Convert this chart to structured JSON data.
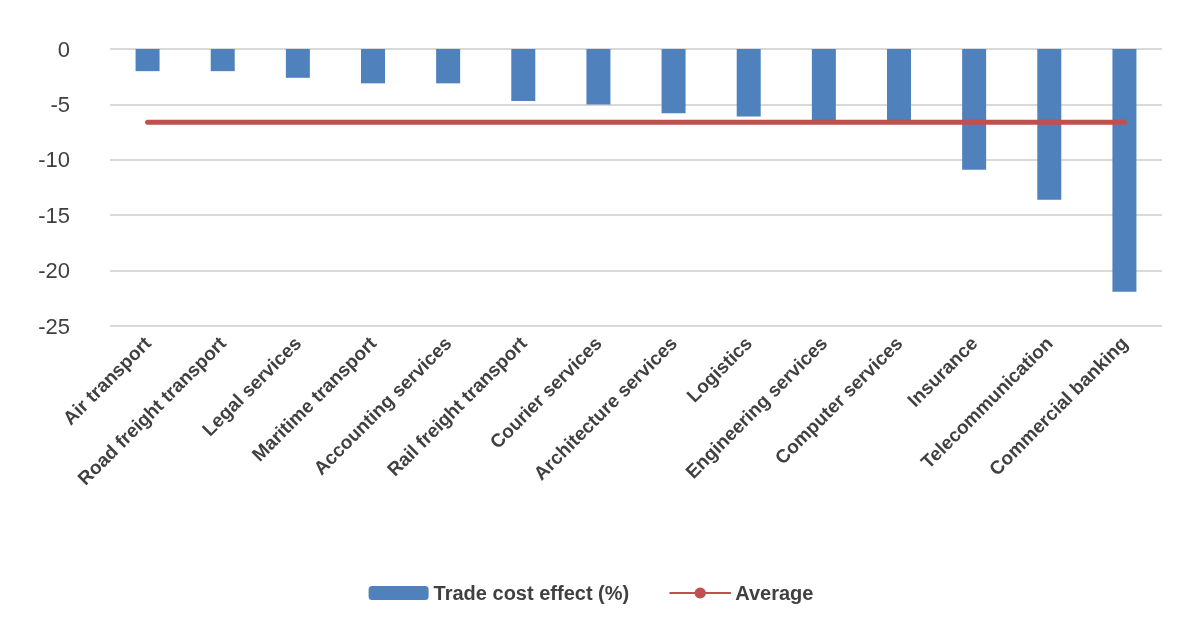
{
  "chart_data": {
    "type": "bar",
    "categories": [
      "Air transport",
      "Road freight transport",
      "Legal services",
      "Maritime transport",
      "Accounting services",
      "Rail freight transport",
      "Courier services",
      "Architecture services",
      "Logistics",
      "Engineering services",
      "Computer services",
      "Insurance",
      "Telecommunication",
      "Commercial banking"
    ],
    "series": [
      {
        "name": "Trade cost effect (%)",
        "color": "#4f81bd",
        "values": [
          -2.0,
          -2.0,
          -2.6,
          -3.1,
          -3.1,
          -4.7,
          -5.0,
          -5.8,
          -6.1,
          -6.5,
          -6.5,
          -10.9,
          -13.6,
          -21.9
        ]
      },
      {
        "name": "Average",
        "type": "line",
        "color": "#c0504d",
        "values": [
          -6.6,
          -6.6,
          -6.6,
          -6.6,
          -6.6,
          -6.6,
          -6.6,
          -6.6,
          -6.6,
          -6.6,
          -6.6,
          -6.6,
          -6.6,
          -6.6
        ]
      }
    ],
    "ylim": [
      -25,
      0
    ],
    "yticks": [
      -25,
      -20,
      -15,
      -10,
      -5,
      0
    ],
    "grid": "y",
    "legend": "bottom",
    "marker": "none"
  }
}
